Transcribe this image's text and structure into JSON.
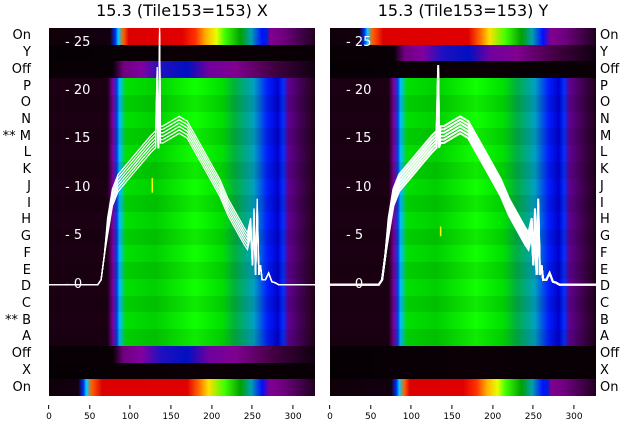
{
  "chart_data": [
    {
      "type": "heatmap",
      "title": "15.3 (Tile153=153) X",
      "row_labels": [
        "On",
        "Y",
        "Off",
        "P",
        "O",
        "N",
        "** M",
        "L",
        "K",
        "J",
        "I",
        "H",
        "G",
        "F",
        "E",
        "D",
        "C",
        "** B",
        "A",
        "Off",
        "X",
        "On"
      ],
      "row_kinds": [
        "on",
        "gap",
        "off",
        "data",
        "data",
        "data",
        "data",
        "data",
        "data",
        "data",
        "data",
        "data",
        "data",
        "data",
        "data",
        "data",
        "data",
        "data",
        "data",
        "off",
        "gap",
        "on2"
      ],
      "xticks": [
        0,
        50,
        100,
        150,
        200,
        250,
        300
      ],
      "xlim": [
        0,
        327
      ],
      "yticks": [
        0,
        5,
        10,
        15,
        20,
        25
      ],
      "ylim": [
        -11.5,
        26.5
      ],
      "series": [
        {
          "name": "profile",
          "x": [
            0,
            60,
            64,
            68,
            72,
            78,
            85,
            95,
            105,
            115,
            125,
            131,
            133,
            134,
            135,
            136,
            137,
            138,
            140,
            150,
            160,
            170,
            180,
            190,
            200,
            210,
            220,
            230,
            240,
            244,
            248,
            250,
            252,
            254,
            256,
            258,
            260,
            262,
            266,
            270,
            274,
            278,
            282,
            327
          ],
          "y": [
            0,
            0,
            0.5,
            3,
            6,
            9,
            10.5,
            11.5,
            12.5,
            13.5,
            14.5,
            15,
            21.6,
            15,
            15,
            25.7,
            15.5,
            15.5,
            15.5,
            16,
            16.5,
            16,
            14.5,
            13,
            11.5,
            10,
            8,
            6.5,
            5,
            4.5,
            6,
            2,
            7,
            1,
            8,
            1,
            2,
            0.5,
            0.5,
            1.2,
            0.3,
            0.2,
            0,
            0
          ]
        }
      ]
    },
    {
      "type": "heatmap",
      "title": "15.3 (Tile153=153) Y",
      "row_labels": [
        "On",
        "Y",
        "Off",
        "P",
        "O",
        "N",
        "M",
        "L",
        "K",
        "J",
        "I",
        "H",
        "G",
        "F",
        "E",
        "D",
        "C",
        "B",
        "A",
        "Off",
        "X",
        "On"
      ],
      "row_kinds": [
        "on2",
        "off",
        "gap",
        "data",
        "data",
        "data",
        "data",
        "data",
        "data",
        "data",
        "data",
        "data",
        "data",
        "data",
        "data",
        "data",
        "data",
        "data",
        "data",
        "gap",
        "gap",
        "on"
      ],
      "xticks": [
        0,
        50,
        100,
        150,
        200,
        250,
        300
      ],
      "xlim": [
        0,
        327
      ],
      "yticks": [
        0,
        5,
        10,
        15,
        20,
        25
      ],
      "ylim": [
        -11.5,
        26.5
      ],
      "series": [
        {
          "name": "profile",
          "x": [
            0,
            60,
            64,
            68,
            72,
            78,
            85,
            95,
            105,
            115,
            125,
            131,
            133,
            134,
            136,
            140,
            150,
            160,
            170,
            180,
            190,
            200,
            210,
            220,
            230,
            240,
            244,
            248,
            250,
            252,
            254,
            256,
            258,
            260,
            262,
            266,
            270,
            274,
            278,
            282,
            327
          ],
          "y": [
            0,
            0,
            0.5,
            3,
            6,
            9,
            10.5,
            11.5,
            12.5,
            13.5,
            14.5,
            15,
            21.8,
            15,
            15.5,
            15.5,
            16,
            16.5,
            16,
            14.5,
            13,
            11.5,
            10,
            8,
            6.5,
            5,
            4.5,
            6,
            2,
            7,
            1,
            8,
            1,
            2,
            0.5,
            0.5,
            1.2,
            0.3,
            0.2,
            0,
            0
          ]
        }
      ]
    }
  ]
}
